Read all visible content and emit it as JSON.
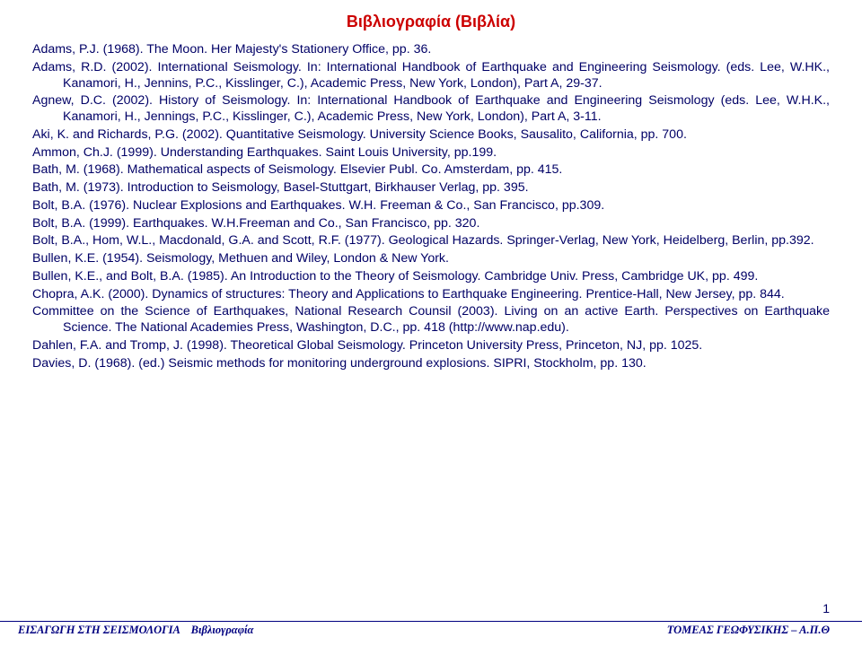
{
  "colors": {
    "title": "#cc0000",
    "body": "#000066",
    "footer": "#000080",
    "background": "#ffffff"
  },
  "title": "Βιβλιογραφία  (Βιβλία)",
  "entries": [
    "Adams, P.J. (1968). The Moon. Her Majesty's Stationery Office, pp. 36.",
    "Adams, R.D. (2002). International Seismology. In: International Handbook of Earthquake and Engineering Seismology. (eds. Lee, W.HK., Kanamori, H., Jennins, P.C., Kisslinger, C.), Academic Press, New York, London), Part A, 29-37.",
    "Agnew, D.C. (2002). History of Seismology. In: International Handbook of Earthquake and Engineering Seismology (eds. Lee, W.H.K., Kanamori, H., Jennings, P.C., Kisslinger, C.), Academic Press, New York, London), Part A, 3-11.",
    "Aki, K. and Richards, P.G. (2002). Quantitative Seismology. University Science Books, Sausalito, California, pp. 700.",
    "Ammon, Ch.J. (1999). Understanding Earthquakes. Saint Louis University, pp.199.",
    "Bath, M. (1968). Mathematical aspects of Seismology. Elsevier Publ. Co. Amsterdam, pp. 415.",
    "Bath, M. (1973).  Introduction to Seismology, Basel-Stuttgart, Birkhauser Verlag, pp. 395.",
    "Bolt, B.A. (1976). Nuclear Explosions and Earthquakes. W.H. Freeman & Co., San Francisco, pp.309.",
    "Bolt, B.A. (1999). Earthquakes.  W.H.Freeman and Co., San Francisco, pp. 320.",
    "Bolt, B.A., Hom, W.L., Macdonald, G.A. and Scott, R.F. (1977). Geological Hazards. Springer-Verlag, New York, Heidelberg, Berlin, pp.392.",
    "Bullen, K.E. (1954). Seismology, Methuen and Wiley, London & New York.",
    "Bullen, K.E., and Bolt, B.A. (1985). An Introduction to the Theory of Seismology. Cambridge Univ. Press, Cambridge UK, pp. 499.",
    "Chopra, A.K. (2000). Dynamics of structures: Theory and Applications to Earthquake Engineering. Prentice-Hall, New Jersey, pp. 844.",
    "Committee on the Science of Earthquakes, National Research Counsil (2003). Living on an active Earth. Perspectives on Earthquake Science. The National Academies Press, Washington, D.C., pp. 418 (http://www.nap.edu).",
    "Dahlen, F.A. and Tromp, J. (1998). Theoretical Global Seismology. Princeton University Press, Princeton, NJ, pp. 1025.",
    "Davies, D. (1968). (ed.) Seismic methods for monitoring underground explosions. SIPRI, Stockholm, pp. 130."
  ],
  "page_number": "1",
  "footer": {
    "left": "ΕΙΣΑΓΩΓΗ ΣΤΗ ΣΕΙΣΜΟΛΟΓΙΑ    Βιβλιογραφία",
    "right": "ΤΟΜΕΑΣ ΓΕΩΦΥΣΙΚΗΣ – Α.Π.Θ"
  }
}
